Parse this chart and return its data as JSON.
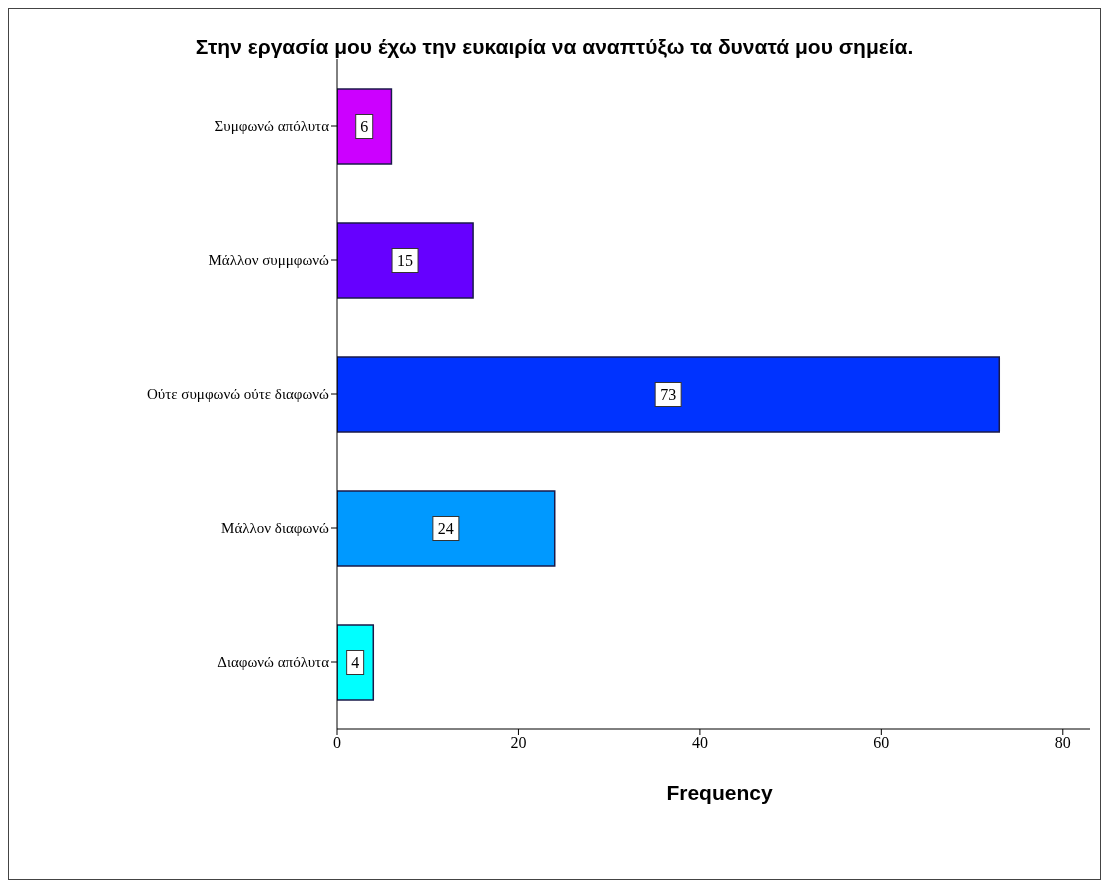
{
  "chart_data": {
    "type": "bar",
    "orientation": "horizontal",
    "title": "Στην εργασία μου έχω την ευκαιρία να αναπτύξω τα δυνατά μου σημεία.",
    "xlabel": "Frequency",
    "categories": [
      "Συμφωνώ απόλυτα",
      "Μάλλον συμμφωνώ",
      "Ούτε συμφωνώ ούτε διαφωνώ",
      "Μάλλον διαφωνώ",
      "Διαφωνώ απόλυτα"
    ],
    "values": [
      6,
      15,
      73,
      24,
      4
    ],
    "colors": [
      "#cc00ff",
      "#6600ff",
      "#0033ff",
      "#0099ff",
      "#00ffff"
    ],
    "xlim": [
      0,
      83
    ],
    "xticks": [
      0,
      20,
      40,
      60,
      80
    ],
    "data_labels": true
  }
}
